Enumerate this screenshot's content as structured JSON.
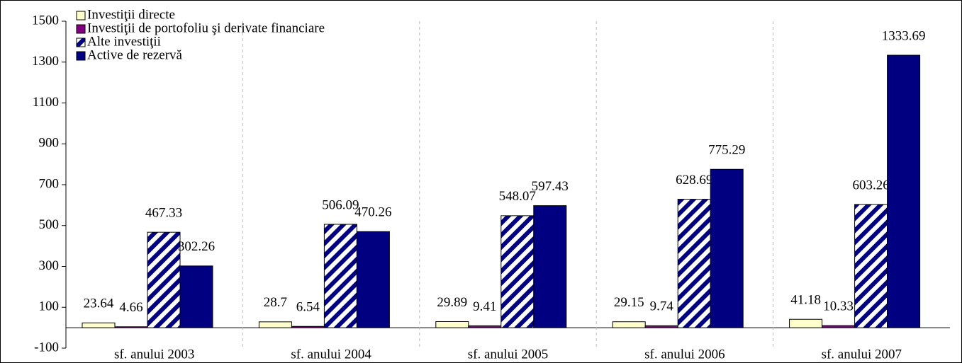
{
  "chart_data": {
    "type": "bar",
    "categories": [
      "sf. anului 2003",
      "sf. anului 2004",
      "sf. anului 2005",
      "sf. anului 2006",
      "sf. anului 2007"
    ],
    "series": [
      {
        "name": "Investiţii directe",
        "color": "#ffffcc",
        "values": [
          23.64,
          28.7,
          29.89,
          29.15,
          41.18
        ]
      },
      {
        "name": "Investiţii de portofoliu şi derivate financiare",
        "color": "#800080",
        "values": [
          4.66,
          6.54,
          9.41,
          9.74,
          10.33
        ]
      },
      {
        "name": "Alte investiţii",
        "color": "#000080",
        "pattern": "hatch",
        "values": [
          467.33,
          506.09,
          548.07,
          628.69,
          603.26
        ]
      },
      {
        "name": "Active de rezervă",
        "color": "#000080",
        "values": [
          302.26,
          470.26,
          597.43,
          775.29,
          1333.69
        ]
      }
    ],
    "ylim": [
      -100,
      1500
    ],
    "yticks": [
      -100,
      100,
      300,
      500,
      700,
      900,
      1100,
      1300,
      1500
    ],
    "legend": "top-left"
  }
}
